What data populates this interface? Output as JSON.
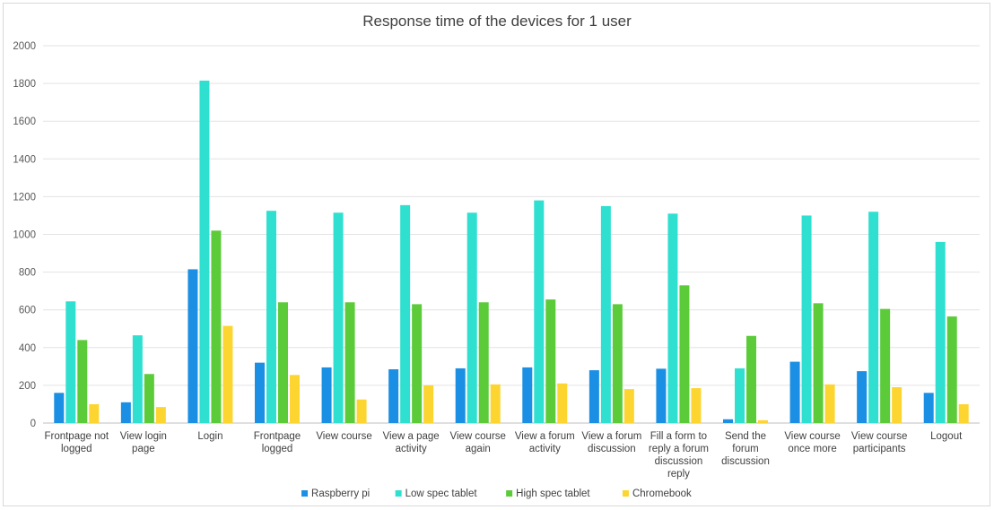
{
  "chart_data": {
    "type": "bar",
    "title": "Response time of the devices for 1 user",
    "xlabel": "",
    "ylabel": "",
    "ylim": [
      0,
      2000
    ],
    "yticks": [
      0,
      200,
      400,
      600,
      800,
      1000,
      1200,
      1400,
      1600,
      1800,
      2000
    ],
    "grid": true,
    "legend_position": "bottom",
    "categories": [
      [
        "Frontpage not",
        "logged"
      ],
      [
        "View login",
        "page"
      ],
      [
        "Login"
      ],
      [
        "Frontpage",
        "logged"
      ],
      [
        "View course"
      ],
      [
        "View a page",
        "activity"
      ],
      [
        "View course",
        "again"
      ],
      [
        "View a forum",
        "activity"
      ],
      [
        "View a forum",
        "discussion"
      ],
      [
        "Fill a form to",
        "reply a forum",
        "discussion",
        "reply"
      ],
      [
        "Send the",
        "forum",
        "discussion"
      ],
      [
        "View course",
        "once more"
      ],
      [
        "View course",
        "participants"
      ],
      [
        "Logout"
      ]
    ],
    "series": [
      {
        "name": "Raspberry pi",
        "color": "#1a8fe3",
        "values": [
          160,
          110,
          815,
          320,
          295,
          285,
          290,
          295,
          280,
          288,
          20,
          325,
          275,
          160
        ]
      },
      {
        "name": "Low spec tablet",
        "color": "#2fe0d0",
        "values": [
          645,
          465,
          1815,
          1125,
          1115,
          1155,
          1115,
          1180,
          1150,
          1110,
          290,
          1100,
          1120,
          960
        ]
      },
      {
        "name": "High spec tablet",
        "color": "#5ccb3a",
        "values": [
          440,
          260,
          1020,
          640,
          640,
          630,
          640,
          655,
          630,
          730,
          462,
          635,
          605,
          565
        ]
      },
      {
        "name": "Chromebook",
        "color": "#fdd531",
        "values": [
          100,
          85,
          515,
          255,
          125,
          200,
          205,
          210,
          180,
          185,
          15,
          205,
          190,
          100
        ]
      }
    ]
  }
}
